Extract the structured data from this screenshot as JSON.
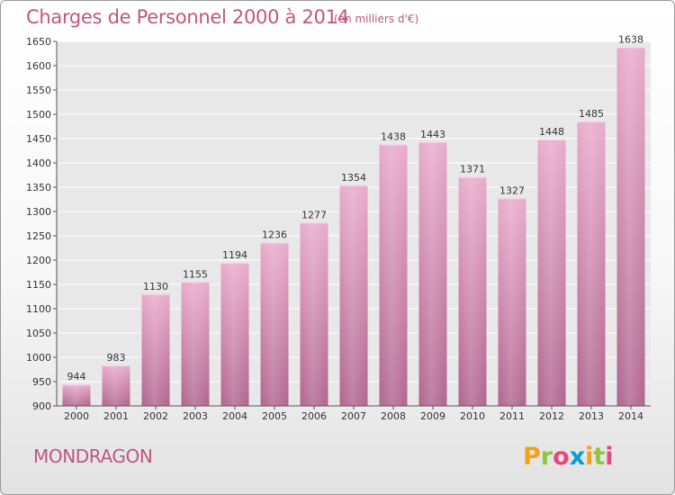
{
  "header": {
    "title": "Charges de Personnel 2000 à 2014",
    "unit": "(en milliers d'€)"
  },
  "footer": {
    "commune": "MONDRAGON",
    "logo_text": "Proxiti",
    "logo_colors": [
      "#f5a01c",
      "#8dc63f",
      "#e8477c",
      "#00a0d6",
      "#f5a01c",
      "#8dc63f",
      "#e8477c"
    ]
  },
  "colors": {
    "accent": "#c0567e",
    "bar_light": "#e9aacb",
    "bar_dark": "#b0658e",
    "grid": "#ffffff",
    "plot_bg": "#e8e8e8"
  },
  "chart_data": {
    "type": "bar",
    "title": "Charges de Personnel 2000 à 2014",
    "subtitle": "(en milliers d'€)",
    "xlabel": "",
    "ylabel": "",
    "categories": [
      "2000",
      "2001",
      "2002",
      "2003",
      "2004",
      "2005",
      "2006",
      "2007",
      "2008",
      "2009",
      "2010",
      "2011",
      "2012",
      "2013",
      "2014"
    ],
    "values": [
      944,
      983,
      1130,
      1155,
      1194,
      1236,
      1277,
      1354,
      1438,
      1443,
      1371,
      1327,
      1448,
      1485,
      1638
    ],
    "ylim": [
      900,
      1650
    ],
    "yticks": [
      900,
      950,
      1000,
      1050,
      1100,
      1150,
      1200,
      1250,
      1300,
      1350,
      1400,
      1450,
      1500,
      1550,
      1600,
      1650
    ],
    "grid": true,
    "legend": "none"
  }
}
